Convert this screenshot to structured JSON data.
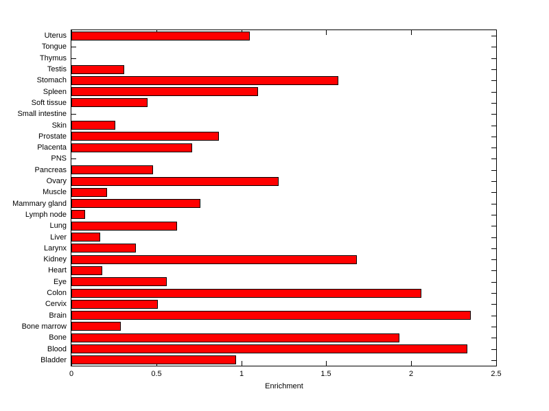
{
  "figure": {
    "background_color": "#FFFFFF",
    "axis_color": "#000000",
    "text_color": "#000000"
  },
  "chart_data": {
    "type": "bar",
    "orientation": "horizontal",
    "title": "",
    "xlabel": "Enrichment",
    "ylabel": "",
    "xlim": [
      0,
      2.5
    ],
    "xticks": [
      0,
      0.5,
      1,
      1.5,
      2,
      2.5
    ],
    "xtick_labels": [
      "0",
      "0.5",
      "1",
      "1.5",
      "2",
      "2.5"
    ],
    "grid": false,
    "legend": null,
    "bar_color": "#FF0000",
    "bar_edge_color": "#000000",
    "categories_top_to_bottom": [
      "Uterus",
      "Tongue",
      "Thymus",
      "Testis",
      "Stomach",
      "Spleen",
      "Soft tissue",
      "Small intestine",
      "Skin",
      "Prostate",
      "Placenta",
      "PNS",
      "Pancreas",
      "Ovary",
      "Muscle",
      "Mammary gland",
      "Lymph node",
      "Lung",
      "Liver",
      "Larynx",
      "Kidney",
      "Heart",
      "Eye",
      "Colon",
      "Cervix",
      "Brain",
      "Bone marrow",
      "Bone",
      "Blood",
      "Bladder"
    ],
    "values": [
      1.05,
      0,
      0,
      0.31,
      1.57,
      1.1,
      0.45,
      0,
      0.26,
      0.87,
      0.71,
      0,
      0.48,
      1.22,
      0.21,
      0.76,
      0.08,
      0.62,
      0.17,
      0.38,
      1.68,
      0.18,
      0.56,
      2.06,
      0.51,
      2.35,
      0.29,
      1.93,
      2.33,
      0.97
    ]
  }
}
